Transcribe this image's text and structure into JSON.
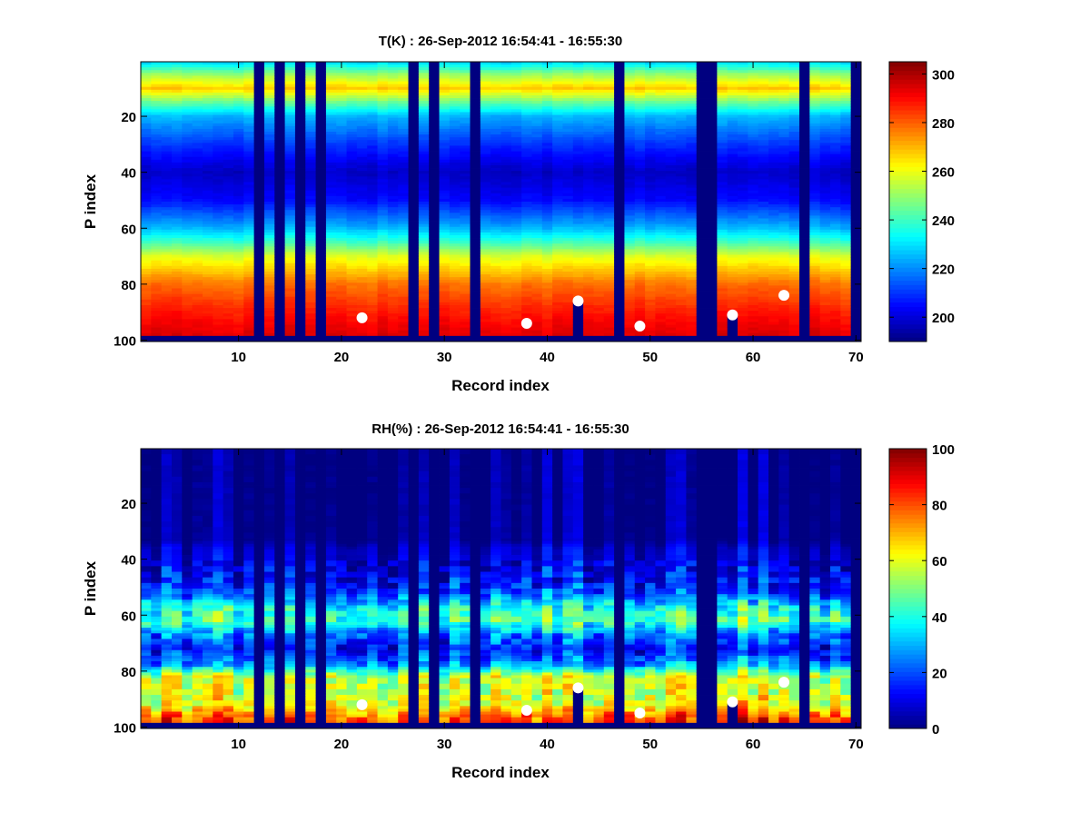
{
  "chart_data": [
    {
      "type": "heatmap",
      "title": "T(K) : 26-Sep-2012 16:54:41 - 16:55:30",
      "xlabel": "Record index",
      "ylabel": "P index",
      "xlim": [
        0.5,
        70.5
      ],
      "ylim": [
        0.5,
        100.5
      ],
      "y_reversed": true,
      "xticks": [
        10,
        20,
        30,
        40,
        50,
        60,
        70
      ],
      "yticks": [
        20,
        40,
        60,
        80,
        100
      ],
      "colormap": "jet",
      "clim": [
        190,
        305
      ],
      "colorbar_ticks": [
        200,
        220,
        240,
        260,
        280,
        300
      ],
      "profile_p": [
        1,
        5,
        10,
        15,
        20,
        30,
        40,
        50,
        60,
        65,
        70,
        75,
        80,
        85,
        90,
        95,
        98
      ],
      "profile_values": [
        230,
        250,
        268,
        245,
        225,
        210,
        198,
        205,
        225,
        240,
        258,
        268,
        278,
        283,
        288,
        292,
        294
      ],
      "noise_amplitude": 4,
      "missing_records": [
        12,
        14,
        16,
        18,
        27,
        29,
        33,
        47,
        55,
        56,
        65,
        70
      ],
      "missing_rows_from": 99,
      "truncated_records": [
        {
          "record": 43,
          "below_p": 86
        },
        {
          "record": 58,
          "below_p": 91
        }
      ],
      "markers": [
        {
          "x": 22,
          "y": 92
        },
        {
          "x": 38,
          "y": 94
        },
        {
          "x": 43,
          "y": 86
        },
        {
          "x": 49,
          "y": 95
        },
        {
          "x": 58,
          "y": 91
        },
        {
          "x": 63,
          "y": 84
        }
      ]
    },
    {
      "type": "heatmap",
      "title": "RH(%) : 26-Sep-2012 16:54:41 - 16:55:30",
      "xlabel": "Record index",
      "ylabel": "P index",
      "xlim": [
        0.5,
        70.5
      ],
      "ylim": [
        0.5,
        100.5
      ],
      "y_reversed": true,
      "xticks": [
        10,
        20,
        30,
        40,
        50,
        60,
        70
      ],
      "yticks": [
        20,
        40,
        60,
        80,
        100
      ],
      "colormap": "jet",
      "clim": [
        0,
        100
      ],
      "colorbar_ticks": [
        0,
        20,
        40,
        60,
        80,
        100
      ],
      "profile_p": [
        1,
        33,
        36,
        45,
        52,
        58,
        62,
        67,
        72,
        78,
        82,
        88,
        92,
        96,
        98
      ],
      "profile_values": [
        1,
        2,
        8,
        12,
        20,
        42,
        46,
        25,
        15,
        30,
        58,
        58,
        62,
        78,
        82
      ],
      "noise_amplitude": 18,
      "missing_records": [
        12,
        14,
        16,
        18,
        27,
        29,
        33,
        47,
        55,
        56,
        65,
        70
      ],
      "missing_rows_from": 99,
      "truncated_records": [
        {
          "record": 43,
          "below_p": 86
        },
        {
          "record": 58,
          "below_p": 91
        }
      ],
      "markers": [
        {
          "x": 22,
          "y": 92
        },
        {
          "x": 38,
          "y": 94
        },
        {
          "x": 43,
          "y": 86
        },
        {
          "x": 49,
          "y": 95
        },
        {
          "x": 58,
          "y": 91
        },
        {
          "x": 63,
          "y": 84
        }
      ]
    }
  ]
}
